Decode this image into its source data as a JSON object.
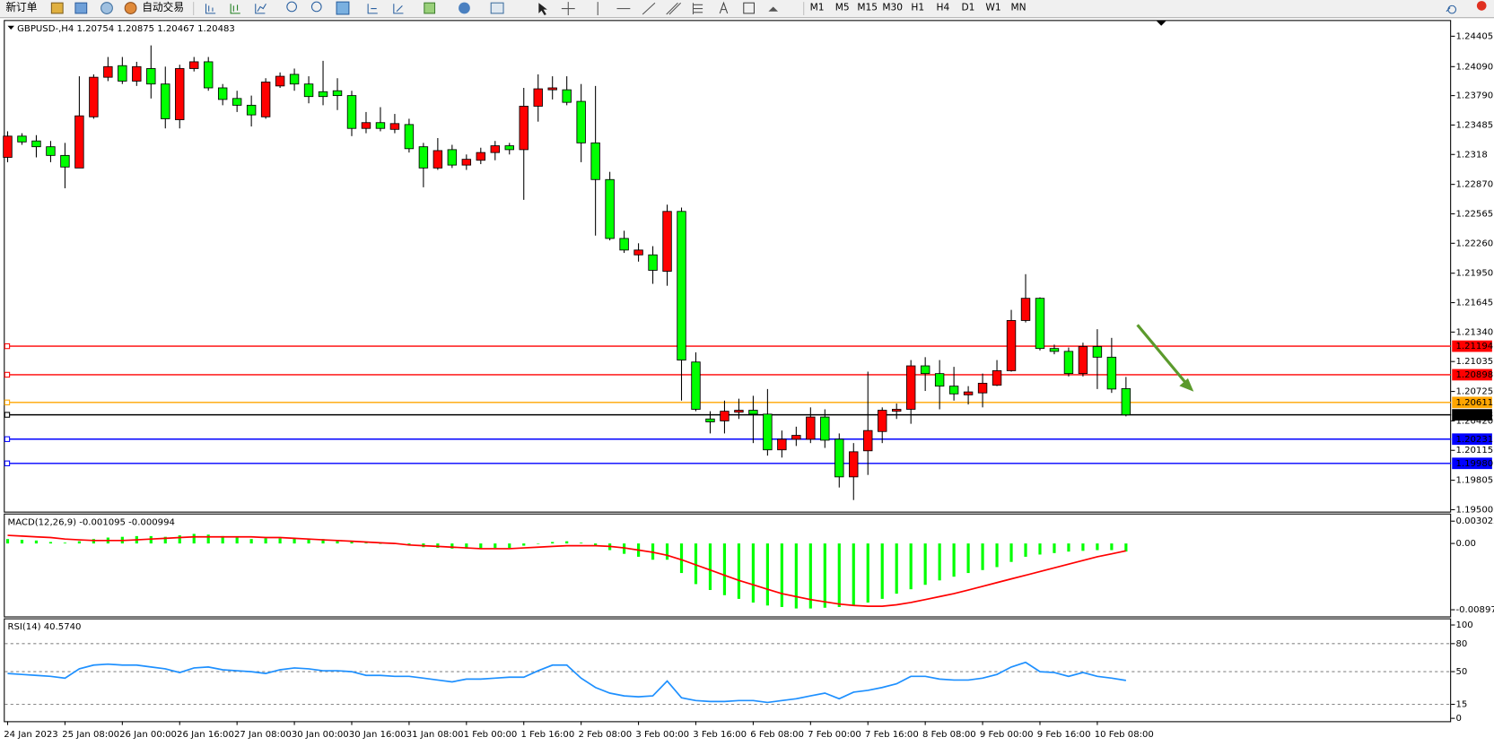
{
  "toolbar": {
    "new_order": "新订单",
    "auto_trading": "自动交易",
    "timeframes": [
      "M1",
      "M5",
      "M15",
      "M30",
      "H1",
      "H4",
      "D1",
      "W1",
      "MN"
    ]
  },
  "chart_data": [
    {
      "type": "candlestick",
      "title": "GBPUSD-,H4  1.20754 1.20875 1.20467 1.20483",
      "categories": [
        "24 Jan 2023",
        null,
        null,
        null,
        "25 Jan 08:00",
        null,
        null,
        null,
        "26 Jan 00:00",
        null,
        null,
        null,
        "26 Jan 16:00",
        null,
        null,
        null,
        "27 Jan 08:00",
        null,
        null,
        null,
        "30 Jan 00:00",
        null,
        null,
        null,
        "30 Jan 16:00",
        null,
        null,
        null,
        "31 Jan 08:00",
        null,
        null,
        null,
        "1 Feb 00:00",
        null,
        null,
        null,
        "1 Feb 16:00",
        null,
        null,
        null,
        "2 Feb 08:00",
        null,
        null,
        null,
        "3 Feb 00:00",
        null,
        null,
        null,
        "3 Feb 16:00",
        null,
        null,
        null,
        "6 Feb 08:00",
        null,
        null,
        null,
        "7 Feb 00:00",
        null,
        null,
        null,
        "7 Feb 16:00",
        null,
        null,
        null,
        "8 Feb 08:00",
        null,
        null,
        null,
        "9 Feb 00:00",
        null,
        null,
        null,
        "9 Feb 16:00",
        null,
        null,
        null,
        "10 Feb 08:00",
        null,
        null
      ],
      "open": [
        1.2315,
        1.2337,
        1.2332,
        1.2326,
        1.2317,
        1.2304,
        1.2357,
        1.2398,
        1.241,
        1.2394,
        1.2407,
        1.2391,
        1.2354,
        1.2407,
        1.2414,
        1.2387,
        1.2376,
        1.2369,
        1.2357,
        1.2389,
        1.2401,
        1.2391,
        1.2383,
        1.2384,
        1.2379,
        1.2345,
        1.2351,
        1.2344,
        1.2349,
        1.2326,
        1.2304,
        1.2323,
        1.2307,
        1.2312,
        1.232,
        1.2327,
        1.2323,
        1.2368,
        1.2385,
        1.2385,
        1.2373,
        1.233,
        1.2292,
        1.2231,
        1.2214,
        1.2214,
        1.2197,
        1.2259,
        1.2103,
        1.2044,
        1.2042,
        1.2051,
        1.2053,
        1.2049,
        1.2012,
        1.2023,
        1.2023,
        1.2046,
        1.2023,
        1.1984,
        1.2011,
        1.2031,
        1.2052,
        1.2054,
        1.2099,
        1.2091,
        1.2078,
        1.2069,
        1.2071,
        1.2079,
        1.2094,
        1.2146,
        1.2169,
        1.2117,
        1.2114,
        1.2091,
        1.2119,
        1.2108,
        1.20754
      ],
      "high": [
        1.2342,
        1.234,
        1.2338,
        1.2332,
        1.233,
        1.2399,
        1.2401,
        1.2419,
        1.2419,
        1.2414,
        1.2431,
        1.2409,
        1.2411,
        1.2419,
        1.2419,
        1.2391,
        1.2384,
        1.2379,
        1.2397,
        1.2403,
        1.2407,
        1.2399,
        1.2415,
        1.2397,
        1.2384,
        1.2362,
        1.2367,
        1.236,
        1.2355,
        1.233,
        1.2335,
        1.2328,
        1.2318,
        1.2325,
        1.2332,
        1.233,
        1.2387,
        1.2401,
        1.2399,
        1.2399,
        1.2391,
        1.2389,
        1.23,
        1.2239,
        1.2226,
        1.2223,
        1.2266,
        1.2263,
        1.2113,
        1.2052,
        1.2063,
        1.2065,
        1.2068,
        1.2075,
        1.2032,
        1.2036,
        1.2056,
        1.2054,
        1.2029,
        1.2019,
        1.2093,
        1.2056,
        1.206,
        1.2105,
        1.2108,
        1.2105,
        1.2098,
        1.2078,
        1.2091,
        1.2105,
        1.2157,
        1.2194,
        1.217,
        1.2121,
        1.2118,
        1.2123,
        1.2137,
        1.2128,
        1.20875
      ],
      "low": [
        1.231,
        1.2328,
        1.2315,
        1.231,
        1.2283,
        1.2304,
        1.2355,
        1.2394,
        1.2391,
        1.2389,
        1.2376,
        1.2345,
        1.2345,
        1.2404,
        1.2384,
        1.2369,
        1.2362,
        1.2347,
        1.2355,
        1.2387,
        1.2384,
        1.2371,
        1.2369,
        1.2364,
        1.2337,
        1.234,
        1.2342,
        1.234,
        1.232,
        1.2284,
        1.2302,
        1.2304,
        1.2302,
        1.2308,
        1.2312,
        1.2318,
        1.2271,
        1.2352,
        1.2375,
        1.2369,
        1.231,
        1.2234,
        1.2229,
        1.2216,
        1.2207,
        1.2184,
        1.2182,
        1.2063,
        1.2052,
        1.2029,
        1.2029,
        1.2044,
        1.2019,
        1.2006,
        1.2004,
        1.2016,
        1.2019,
        1.2014,
        1.1973,
        1.196,
        1.1986,
        1.2019,
        1.2044,
        1.2039,
        1.2073,
        1.2054,
        1.2063,
        1.2059,
        1.2056,
        1.2078,
        1.2093,
        1.2144,
        1.2115,
        1.2111,
        1.2088,
        1.2088,
        1.2075,
        1.2071,
        1.20467
      ],
      "close": [
        1.2337,
        1.2331,
        1.2326,
        1.2317,
        1.2305,
        1.2358,
        1.2398,
        1.2409,
        1.2394,
        1.2409,
        1.2391,
        1.2355,
        1.2407,
        1.2414,
        1.2387,
        1.2375,
        1.2369,
        1.2359,
        1.2393,
        1.2399,
        1.2391,
        1.2378,
        1.2378,
        1.2379,
        1.2345,
        1.2351,
        1.2345,
        1.235,
        1.2324,
        1.2304,
        1.2322,
        1.2307,
        1.2313,
        1.232,
        1.2327,
        1.2323,
        1.2368,
        1.2386,
        1.2387,
        1.2372,
        1.233,
        1.2292,
        1.2231,
        1.2219,
        1.2219,
        1.2198,
        1.2259,
        1.2105,
        1.2054,
        1.2041,
        1.2052,
        1.2053,
        1.2049,
        1.2012,
        1.2023,
        1.2027,
        1.2046,
        1.2022,
        1.1984,
        1.201,
        1.2032,
        1.2053,
        1.2054,
        1.2099,
        1.2091,
        1.2078,
        1.207,
        1.2072,
        1.2081,
        1.2094,
        1.2146,
        1.2169,
        1.2117,
        1.2114,
        1.2091,
        1.2119,
        1.2108,
        1.2075,
        1.20483
      ],
      "up_color": "#ff0000",
      "down_color": "#00ff00",
      "ylim": [
        1.1948,
        1.24563
      ],
      "yticks": [
        1.24405,
        {
          "value": 1.2409,
          "label": "1.24090"
        },
        {
          "value": 1.2379,
          "label": "1.23790"
        },
        1.23485,
        1.2318,
        {
          "value": 1.2287,
          "label": "1.22870"
        },
        1.22565,
        {
          "value": 1.2226,
          "label": "1.22260"
        },
        {
          "value": 1.2195,
          "label": "1.21950"
        },
        1.21645,
        {
          "value": 1.2134,
          "label": "1.21340"
        },
        1.21035,
        1.20725,
        {
          "value": 1.2042,
          "label": "1.20420"
        },
        1.20115,
        1.19805,
        {
          "value": 1.195,
          "label": "1.19500"
        }
      ],
      "levels": [
        {
          "value": 1.21194,
          "color": "#ff0000"
        },
        {
          "value": 1.20898,
          "color": "#ff0000"
        },
        {
          "value": 1.20611,
          "color": "#ffa500"
        },
        {
          "value": 1.20483,
          "color": "#000000"
        },
        {
          "value": 1.20231,
          "color": "#0000ff"
        },
        {
          "value": 1.1998,
          "label": "1.19980",
          "color": "#0000ff"
        }
      ]
    },
    {
      "type": "macd",
      "title": "MACD(12,26,9) -0.001095 -0.000994",
      "histogram": [
        0.0006,
        0.0005,
        0.0004,
        0.0002,
        0.0001,
        0.0003,
        0.0006,
        0.0008,
        0.0009,
        0.001,
        0.001,
        0.0009,
        0.0011,
        0.0013,
        0.0012,
        0.001,
        0.0008,
        0.0006,
        0.0007,
        0.0007,
        0.0007,
        0.0006,
        0.0006,
        0.0005,
        0.0002,
        0.0001,
        0,
        -0.0001,
        -0.0002,
        -0.0005,
        -0.0006,
        -0.0007,
        -0.0007,
        -0.0007,
        -0.0006,
        -0.0006,
        -0.0003,
        0,
        0.0002,
        0.0003,
        0.0001,
        -0.0003,
        -0.0009,
        -0.0014,
        -0.0018,
        -0.0022,
        -0.0022,
        -0.004,
        -0.0055,
        -0.0063,
        -0.007,
        -0.0075,
        -0.008,
        -0.0084,
        -0.0086,
        -0.0088,
        -0.0088,
        -0.0087,
        -0.0086,
        -0.0084,
        -0.008,
        -0.0075,
        -0.0068,
        -0.0062,
        -0.0056,
        -0.005,
        -0.0045,
        -0.004,
        -0.0036,
        -0.0032,
        -0.0025,
        -0.0018,
        -0.0015,
        -0.0013,
        -0.0011,
        -0.001,
        -0.0009,
        -0.0009,
        -0.001095
      ],
      "signal": [
        0.0011,
        0.001,
        0.0009,
        0.0008,
        0.0006,
        0.0005,
        0.0004,
        0.0004,
        0.0004,
        0.0005,
        0.0006,
        0.0007,
        0.0008,
        0.0009,
        0.0009,
        0.0009,
        0.0009,
        0.0009,
        0.0008,
        0.0008,
        0.0007,
        0.0006,
        0.0005,
        0.0004,
        0.0003,
        0.0002,
        0.0001,
        0,
        -0.0002,
        -0.0003,
        -0.0004,
        -0.0005,
        -0.0006,
        -0.0007,
        -0.0007,
        -0.0007,
        -0.0006,
        -0.0005,
        -0.0004,
        -0.0003,
        -0.0003,
        -0.0003,
        -0.0004,
        -0.0006,
        -0.0009,
        -0.0012,
        -0.0016,
        -0.0022,
        -0.0029,
        -0.0036,
        -0.0043,
        -0.005,
        -0.0056,
        -0.0062,
        -0.0068,
        -0.0072,
        -0.0076,
        -0.0079,
        -0.0082,
        -0.0084,
        -0.0085,
        -0.0085,
        -0.0083,
        -0.008,
        -0.0076,
        -0.0072,
        -0.0068,
        -0.0063,
        -0.0058,
        -0.0053,
        -0.0048,
        -0.0043,
        -0.0038,
        -0.0033,
        -0.0028,
        -0.0023,
        -0.0018,
        -0.0014,
        -0.000994
      ],
      "histogram_color": "#00ff00",
      "signal_color": "#ff0000",
      "ylim": [
        -0.009877,
        0.003925
      ],
      "yticks": [
        0.003022,
        {
          "value": 0,
          "label": "0.00"
        },
        -0.008974
      ]
    },
    {
      "type": "line",
      "title": "RSI(14) 40.5740",
      "values": [
        48,
        47,
        46,
        45,
        43,
        53,
        57,
        58,
        57,
        57,
        55,
        53,
        49,
        54,
        55,
        52,
        51,
        50,
        48,
        52,
        54,
        53,
        51,
        51,
        50,
        46,
        46,
        45,
        45,
        43,
        41,
        39,
        42,
        42,
        43,
        44,
        44,
        51,
        57,
        57,
        43,
        33,
        27,
        24,
        23,
        24,
        40,
        22,
        19,
        18,
        18,
        19,
        19,
        17,
        19,
        21,
        24,
        27,
        21,
        28,
        30,
        33,
        37,
        45,
        45,
        42,
        41,
        41,
        43,
        47,
        55,
        60,
        50,
        49,
        45,
        49,
        45,
        43,
        40.574
      ],
      "color": "#1e90ff",
      "ylim": [
        -3.1,
        106.1
      ],
      "yticks": [
        0,
        15,
        50,
        80,
        100
      ],
      "dashed_levels": true
    }
  ]
}
